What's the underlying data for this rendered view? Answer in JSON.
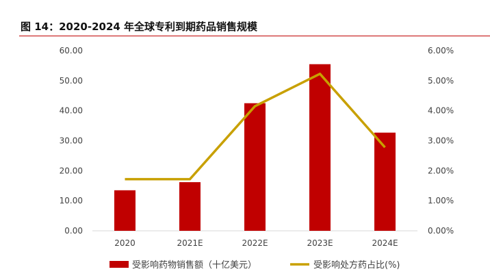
{
  "figure": {
    "title": "图 14：2020-2024 年全球专利到期药品销售规模"
  },
  "colors": {
    "bar": "#c00000",
    "line": "#c8a000",
    "rule": "#c00000",
    "axis": "#d9d9d9",
    "text": "#404040"
  },
  "chart_data": {
    "type": "bar",
    "categories": [
      "2020",
      "2021E",
      "2022E",
      "2023E",
      "2024E"
    ],
    "series": [
      {
        "name": "受影响药物销售额（十亿美元）",
        "type": "bar",
        "axis": "left",
        "values": [
          13.5,
          16.2,
          42.5,
          55.5,
          32.7
        ]
      },
      {
        "name": "受影响处方药占比(%)",
        "type": "line",
        "axis": "right",
        "values": [
          0.0172,
          0.0172,
          0.0415,
          0.0523,
          0.0278
        ]
      }
    ],
    "ylim": [
      0,
      60
    ],
    "yticks": [
      "0.00",
      "10.00",
      "20.00",
      "30.00",
      "40.00",
      "50.00",
      "60.00"
    ],
    "y2lim": [
      0,
      0.06
    ],
    "y2ticks": [
      "0.00%",
      "1.00%",
      "2.00%",
      "3.00%",
      "4.00%",
      "5.00%",
      "6.00%"
    ],
    "grid": false,
    "legend": "bottom"
  }
}
